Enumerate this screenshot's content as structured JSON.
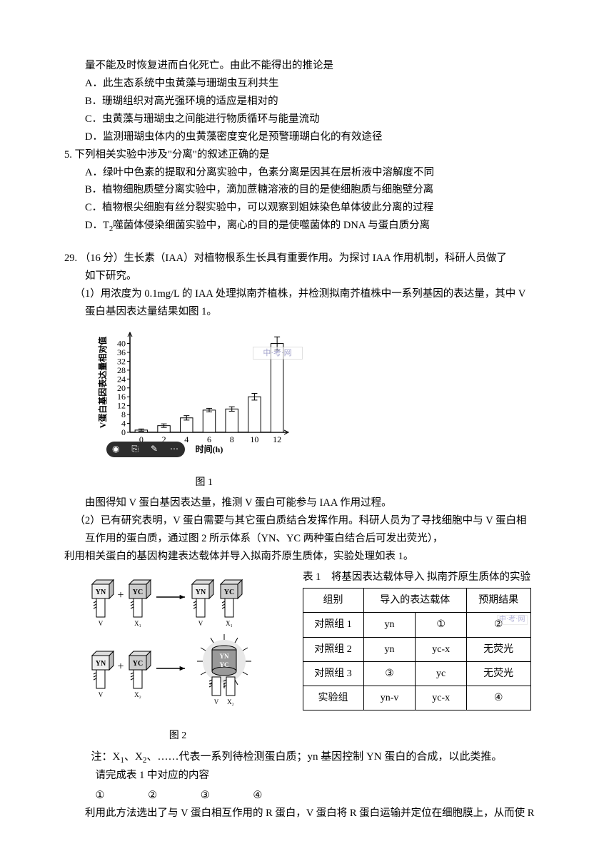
{
  "top": {
    "stem_cont": "量不能及时恢复进而白化死亡。由此不能得出的推论是",
    "A": "A．此生态系统中虫黄藻与珊瑚虫互利共生",
    "B": "B．珊瑚组织对高光强环境的适应是相对的",
    "C": "C．虫黄藻与珊瑚虫之间能进行物质循环与能量流动",
    "D": "D．监测珊瑚虫体内的虫黄藻密度变化是预警珊瑚白化的有效途径"
  },
  "q5": {
    "num": "5.",
    "stem": "下列相关实验中涉及\"分离\"的叙述正确的是",
    "A": "A．绿叶中色素的提取和分离实验中，色素分离是因其在层析液中溶解度不同",
    "B": "B．植物细胞质壁分离实验中，滴加蔗糖溶液的目的是使细胞质与细胞壁分离",
    "C": "C．植物根尖细胞有丝分裂实验中，可以观察到姐妹染色单体彼此分离的过程",
    "D_pre": "D．T",
    "D_sub": "2",
    "D_post": "噬菌体侵染细菌实验中，离心的目的是使噬菌体的 DNA 与蛋白质分离"
  },
  "q29": {
    "num": "29.",
    "stem_a": "（16 分）生长素（IAA）对植物根系生长具有重要作用。为探讨 IAA 作用机制，科研人员做了",
    "stem_b": "如下研究。",
    "p1a": "（1）用浓度为 0.1mg/L 的 IAA 处理拟南芥植株，并检测拟南芥植株中一系列基因的表达量，其中 V",
    "p1b": "蛋白基因表达量结果如图 1。",
    "fig1_caption": "图 1",
    "chart": {
      "title": "",
      "ylabel": "V蛋白基因表达量相对值",
      "xlabel": "时间(h)",
      "x_categories": [
        "0",
        "2",
        "4",
        "6",
        "8",
        "10",
        "12"
      ],
      "values": [
        1,
        3,
        6.5,
        10,
        10.5,
        16,
        40
      ],
      "errs": [
        0.5,
        0.8,
        1.0,
        0.8,
        1.0,
        1.5,
        3.0
      ],
      "ylim": [
        0,
        45
      ],
      "ytick_step": 4,
      "bar_fill": "#ffffff",
      "bar_stroke": "#000000",
      "axis_color": "#000000",
      "label_fontsize": 12,
      "bar_width": 0.55
    },
    "p1c": "由图得知 V 蛋白基因表达量，推测 V 蛋白可能参与 IAA 作用过程。",
    "p2a": "（2）已有研究表明，V 蛋白需要与其它蛋白质结合发挥作用。科研人员为了寻找细胞中与 V 蛋白相",
    "p2b": "互作用的蛋白质，通过图 2 所示体系（YN、YC 两种蛋白结合后可发出荧光），",
    "p2c": "利用相关蛋白的基因构建表达载体并导入拟南芥原生质体，实验处理如表 1。",
    "fig2_caption": "图 2",
    "table": {
      "title": "表 1　将基因表达载体导入\n拟南芥原生质体的实验",
      "headers": [
        "组别",
        "导入的表达载体",
        "预期结果"
      ],
      "header_span": [
        1,
        2,
        1
      ],
      "rows": [
        [
          "对照组 1",
          "yn",
          "①",
          "②"
        ],
        [
          "对照组 2",
          "yn",
          "yc-x",
          "无荧光"
        ],
        [
          "对照组 3",
          "③",
          "yc",
          "无荧光"
        ],
        [
          "实验组",
          "yn-v",
          "yc-x",
          "④"
        ]
      ]
    },
    "note_pre": "注：X",
    "note_s1": "1",
    "note_mid": "、X",
    "note_s2": "2",
    "note_post": "、……代表一系列待检测蛋白质；yn 基因控制 YN 蛋白的合成，以此类推。",
    "note2": "请完成表 1 中对应的内容",
    "blanks": [
      "①",
      "②",
      "③",
      "④"
    ],
    "p2d": "利用此方法选出了与 V 蛋白相互作用的 R 蛋白，V 蛋白将 R 蛋白运输并定位在细胞膜上，从而使 R",
    "diagram_labels": {
      "YN": "YN",
      "YC": "YC",
      "V": "V",
      "X1": "X₁",
      "X2": "X₂",
      "YNYC": "YN\nYC"
    },
    "watermark": "中·考·网"
  }
}
